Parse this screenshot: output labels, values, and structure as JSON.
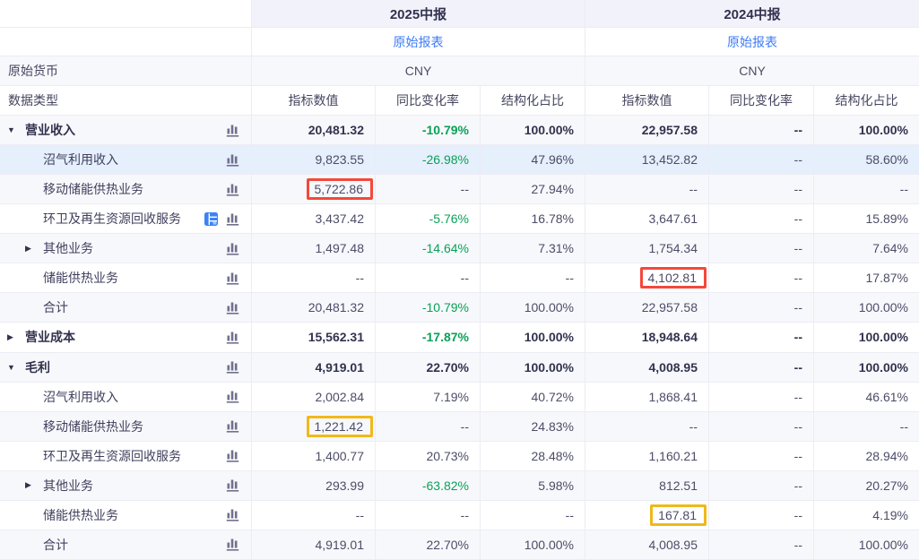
{
  "colors": {
    "text_dark": "#32324f",
    "text_number": "#4c4c68",
    "negative_green": "#0aa158",
    "link_blue": "#3d7bf7",
    "period_header_bg": "#f1f2fa",
    "stripe_bg": "#f7f8fb",
    "highlight_row_bg": "#e6effc",
    "border": "#ececf4",
    "red_annotation_box": "#f4483a",
    "yellow_annotation_box": "#f0b81a",
    "bar_icon_gray": "#70708e",
    "table_icon_blue": "#3b82f6"
  },
  "header": {
    "period_2025": "2025中报",
    "period_2024": "2024中报",
    "report_link_2025": "原始报表",
    "report_link_2024": "原始报表",
    "currency_label": "原始货币",
    "currency_2025": "CNY",
    "currency_2024": "CNY",
    "datatype_label": "数据类型",
    "col_value": "指标数值",
    "col_yoy": "同比变化率",
    "col_ratio": "结构化占比"
  },
  "icons": {
    "caret_expanded_glyph": "▼",
    "caret_collapsed_glyph": "▶",
    "bar_chart_icon": "bar-chart",
    "table_grid_icon": "table-grid"
  },
  "rows": [
    {
      "label": "营业收入",
      "level": 0,
      "caret": "down",
      "bold": true,
      "highlight": false,
      "table_icon": false,
      "cells": [
        {
          "text": "20,481.32"
        },
        {
          "text": "-10.79%",
          "green": true
        },
        {
          "text": "100.00%"
        },
        {
          "text": "22,957.58"
        },
        {
          "text": "--"
        },
        {
          "text": "100.00%"
        }
      ]
    },
    {
      "label": "沼气利用收入",
      "level": 1,
      "caret": "",
      "bold": false,
      "highlight": true,
      "table_icon": false,
      "cells": [
        {
          "text": "9,823.55"
        },
        {
          "text": "-26.98%",
          "green": true
        },
        {
          "text": "47.96%"
        },
        {
          "text": "13,452.82"
        },
        {
          "text": "--"
        },
        {
          "text": "58.60%"
        }
      ]
    },
    {
      "label": "移动储能供热业务",
      "level": 1,
      "caret": "",
      "bold": false,
      "highlight": false,
      "table_icon": false,
      "cells": [
        {
          "text": "5,722.86",
          "box": "red"
        },
        {
          "text": "--"
        },
        {
          "text": "27.94%"
        },
        {
          "text": "--"
        },
        {
          "text": "--"
        },
        {
          "text": "--"
        }
      ]
    },
    {
      "label": "环卫及再生资源回收服务",
      "level": 1,
      "caret": "",
      "bold": false,
      "highlight": false,
      "table_icon": true,
      "cells": [
        {
          "text": "3,437.42"
        },
        {
          "text": "-5.76%",
          "green": true
        },
        {
          "text": "16.78%"
        },
        {
          "text": "3,647.61"
        },
        {
          "text": "--"
        },
        {
          "text": "15.89%"
        }
      ]
    },
    {
      "label": "其他业务",
      "level": 1,
      "caret": "right",
      "bold": false,
      "highlight": false,
      "table_icon": false,
      "cells": [
        {
          "text": "1,497.48"
        },
        {
          "text": "-14.64%",
          "green": true
        },
        {
          "text": "7.31%"
        },
        {
          "text": "1,754.34"
        },
        {
          "text": "--"
        },
        {
          "text": "7.64%"
        }
      ]
    },
    {
      "label": "储能供热业务",
      "level": 1,
      "caret": "",
      "bold": false,
      "highlight": false,
      "table_icon": false,
      "cells": [
        {
          "text": "--"
        },
        {
          "text": "--"
        },
        {
          "text": "--"
        },
        {
          "text": "4,102.81",
          "box": "red"
        },
        {
          "text": "--"
        },
        {
          "text": "17.87%"
        }
      ]
    },
    {
      "label": "合计",
      "level": 1,
      "caret": "",
      "bold": false,
      "highlight": false,
      "table_icon": false,
      "cells": [
        {
          "text": "20,481.32"
        },
        {
          "text": "-10.79%",
          "green": true
        },
        {
          "text": "100.00%"
        },
        {
          "text": "22,957.58"
        },
        {
          "text": "--"
        },
        {
          "text": "100.00%"
        }
      ]
    },
    {
      "label": "营业成本",
      "level": 0,
      "caret": "right",
      "bold": true,
      "highlight": false,
      "table_icon": false,
      "cells": [
        {
          "text": "15,562.31"
        },
        {
          "text": "-17.87%",
          "green": true
        },
        {
          "text": "100.00%"
        },
        {
          "text": "18,948.64"
        },
        {
          "text": "--"
        },
        {
          "text": "100.00%"
        }
      ]
    },
    {
      "label": "毛利",
      "level": 0,
      "caret": "down",
      "bold": true,
      "highlight": false,
      "table_icon": false,
      "cells": [
        {
          "text": "4,919.01"
        },
        {
          "text": "22.70%"
        },
        {
          "text": "100.00%"
        },
        {
          "text": "4,008.95"
        },
        {
          "text": "--"
        },
        {
          "text": "100.00%"
        }
      ]
    },
    {
      "label": "沼气利用收入",
      "level": 1,
      "caret": "",
      "bold": false,
      "highlight": false,
      "table_icon": false,
      "cells": [
        {
          "text": "2,002.84"
        },
        {
          "text": "7.19%"
        },
        {
          "text": "40.72%"
        },
        {
          "text": "1,868.41"
        },
        {
          "text": "--"
        },
        {
          "text": "46.61%"
        }
      ]
    },
    {
      "label": "移动储能供热业务",
      "level": 1,
      "caret": "",
      "bold": false,
      "highlight": false,
      "table_icon": false,
      "cells": [
        {
          "text": "1,221.42",
          "box": "yellow"
        },
        {
          "text": "--"
        },
        {
          "text": "24.83%"
        },
        {
          "text": "--"
        },
        {
          "text": "--"
        },
        {
          "text": "--"
        }
      ]
    },
    {
      "label": "环卫及再生资源回收服务",
      "level": 1,
      "caret": "",
      "bold": false,
      "highlight": false,
      "table_icon": false,
      "cells": [
        {
          "text": "1,400.77"
        },
        {
          "text": "20.73%"
        },
        {
          "text": "28.48%"
        },
        {
          "text": "1,160.21"
        },
        {
          "text": "--"
        },
        {
          "text": "28.94%"
        }
      ]
    },
    {
      "label": "其他业务",
      "level": 1,
      "caret": "right",
      "bold": false,
      "highlight": false,
      "table_icon": false,
      "cells": [
        {
          "text": "293.99"
        },
        {
          "text": "-63.82%",
          "green": true
        },
        {
          "text": "5.98%"
        },
        {
          "text": "812.51"
        },
        {
          "text": "--"
        },
        {
          "text": "20.27%"
        }
      ]
    },
    {
      "label": "储能供热业务",
      "level": 1,
      "caret": "",
      "bold": false,
      "highlight": false,
      "table_icon": false,
      "cells": [
        {
          "text": "--"
        },
        {
          "text": "--"
        },
        {
          "text": "--"
        },
        {
          "text": "167.81",
          "box": "yellow"
        },
        {
          "text": "--"
        },
        {
          "text": "4.19%"
        }
      ]
    },
    {
      "label": "合计",
      "level": 1,
      "caret": "",
      "bold": false,
      "highlight": false,
      "table_icon": false,
      "cells": [
        {
          "text": "4,919.01"
        },
        {
          "text": "22.70%"
        },
        {
          "text": "100.00%"
        },
        {
          "text": "4,008.95"
        },
        {
          "text": "--"
        },
        {
          "text": "100.00%"
        }
      ]
    }
  ]
}
